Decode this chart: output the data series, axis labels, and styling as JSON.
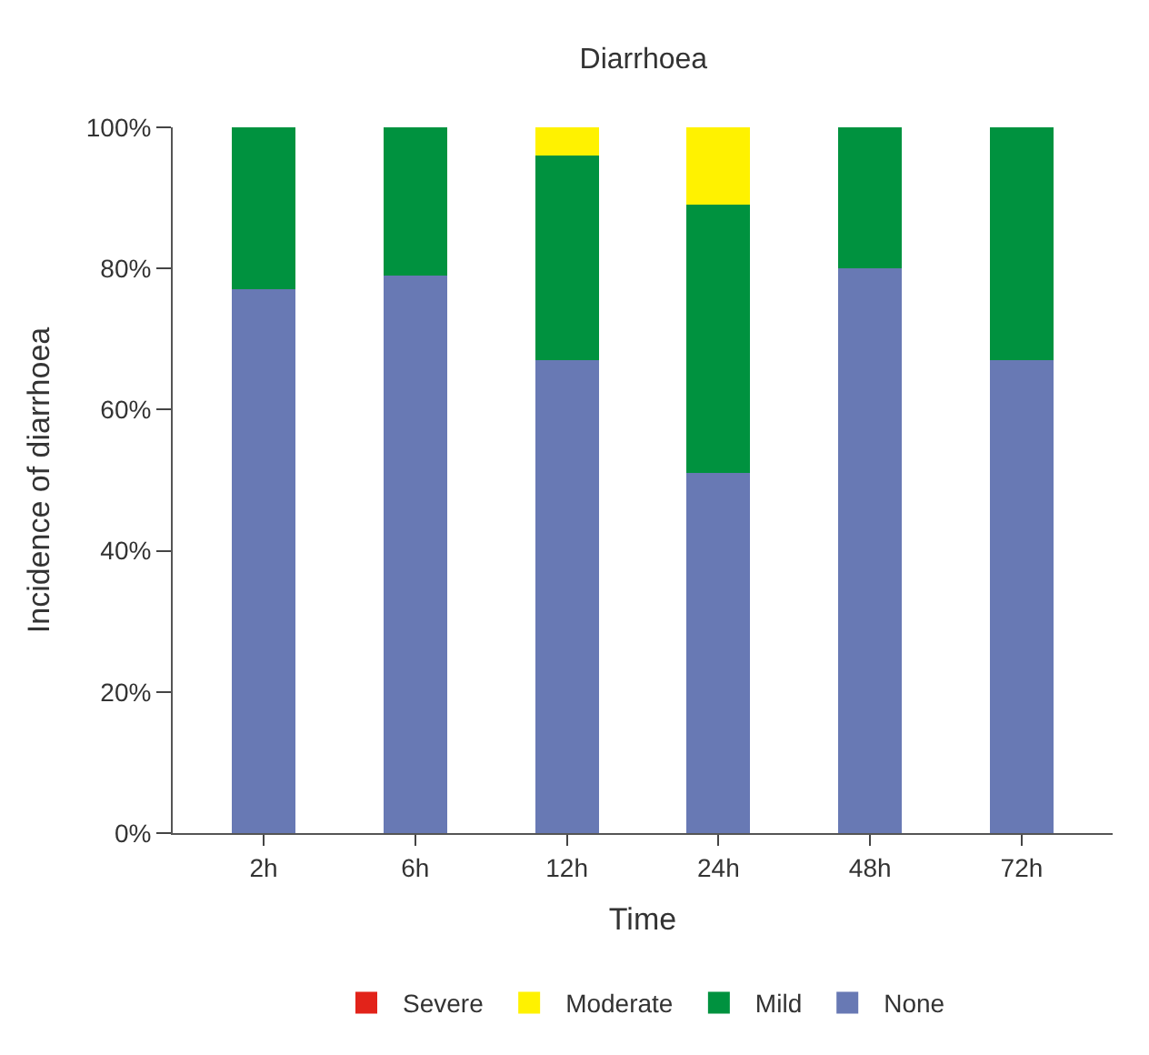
{
  "chart_data": {
    "type": "bar",
    "title": "Diarrhoea",
    "xlabel": "Time",
    "ylabel": "Incidence of diarrhoea",
    "categories": [
      "2h",
      "6h",
      "12h",
      "24h",
      "48h",
      "72h"
    ],
    "stacked": true,
    "series": [
      {
        "name": "None",
        "color": "#6879b4",
        "values": [
          77,
          79,
          67,
          51,
          80,
          67
        ]
      },
      {
        "name": "Mild",
        "color": "#00923f",
        "values": [
          23,
          21,
          29,
          38,
          20,
          33
        ]
      },
      {
        "name": "Moderate",
        "color": "#fff200",
        "values": [
          0,
          0,
          4,
          11,
          0,
          0
        ]
      },
      {
        "name": "Severe",
        "color": "#e2231a",
        "values": [
          0,
          0,
          0,
          0,
          0,
          0
        ]
      }
    ],
    "ylim": [
      0,
      100
    ],
    "yticks": [
      {
        "value": 0,
        "label": "0%"
      },
      {
        "value": 20,
        "label": "20%"
      },
      {
        "value": 40,
        "label": "40%"
      },
      {
        "value": 60,
        "label": "60%"
      },
      {
        "value": 80,
        "label": "80%"
      },
      {
        "value": 100,
        "label": "100%"
      }
    ],
    "legend": "bottom"
  }
}
